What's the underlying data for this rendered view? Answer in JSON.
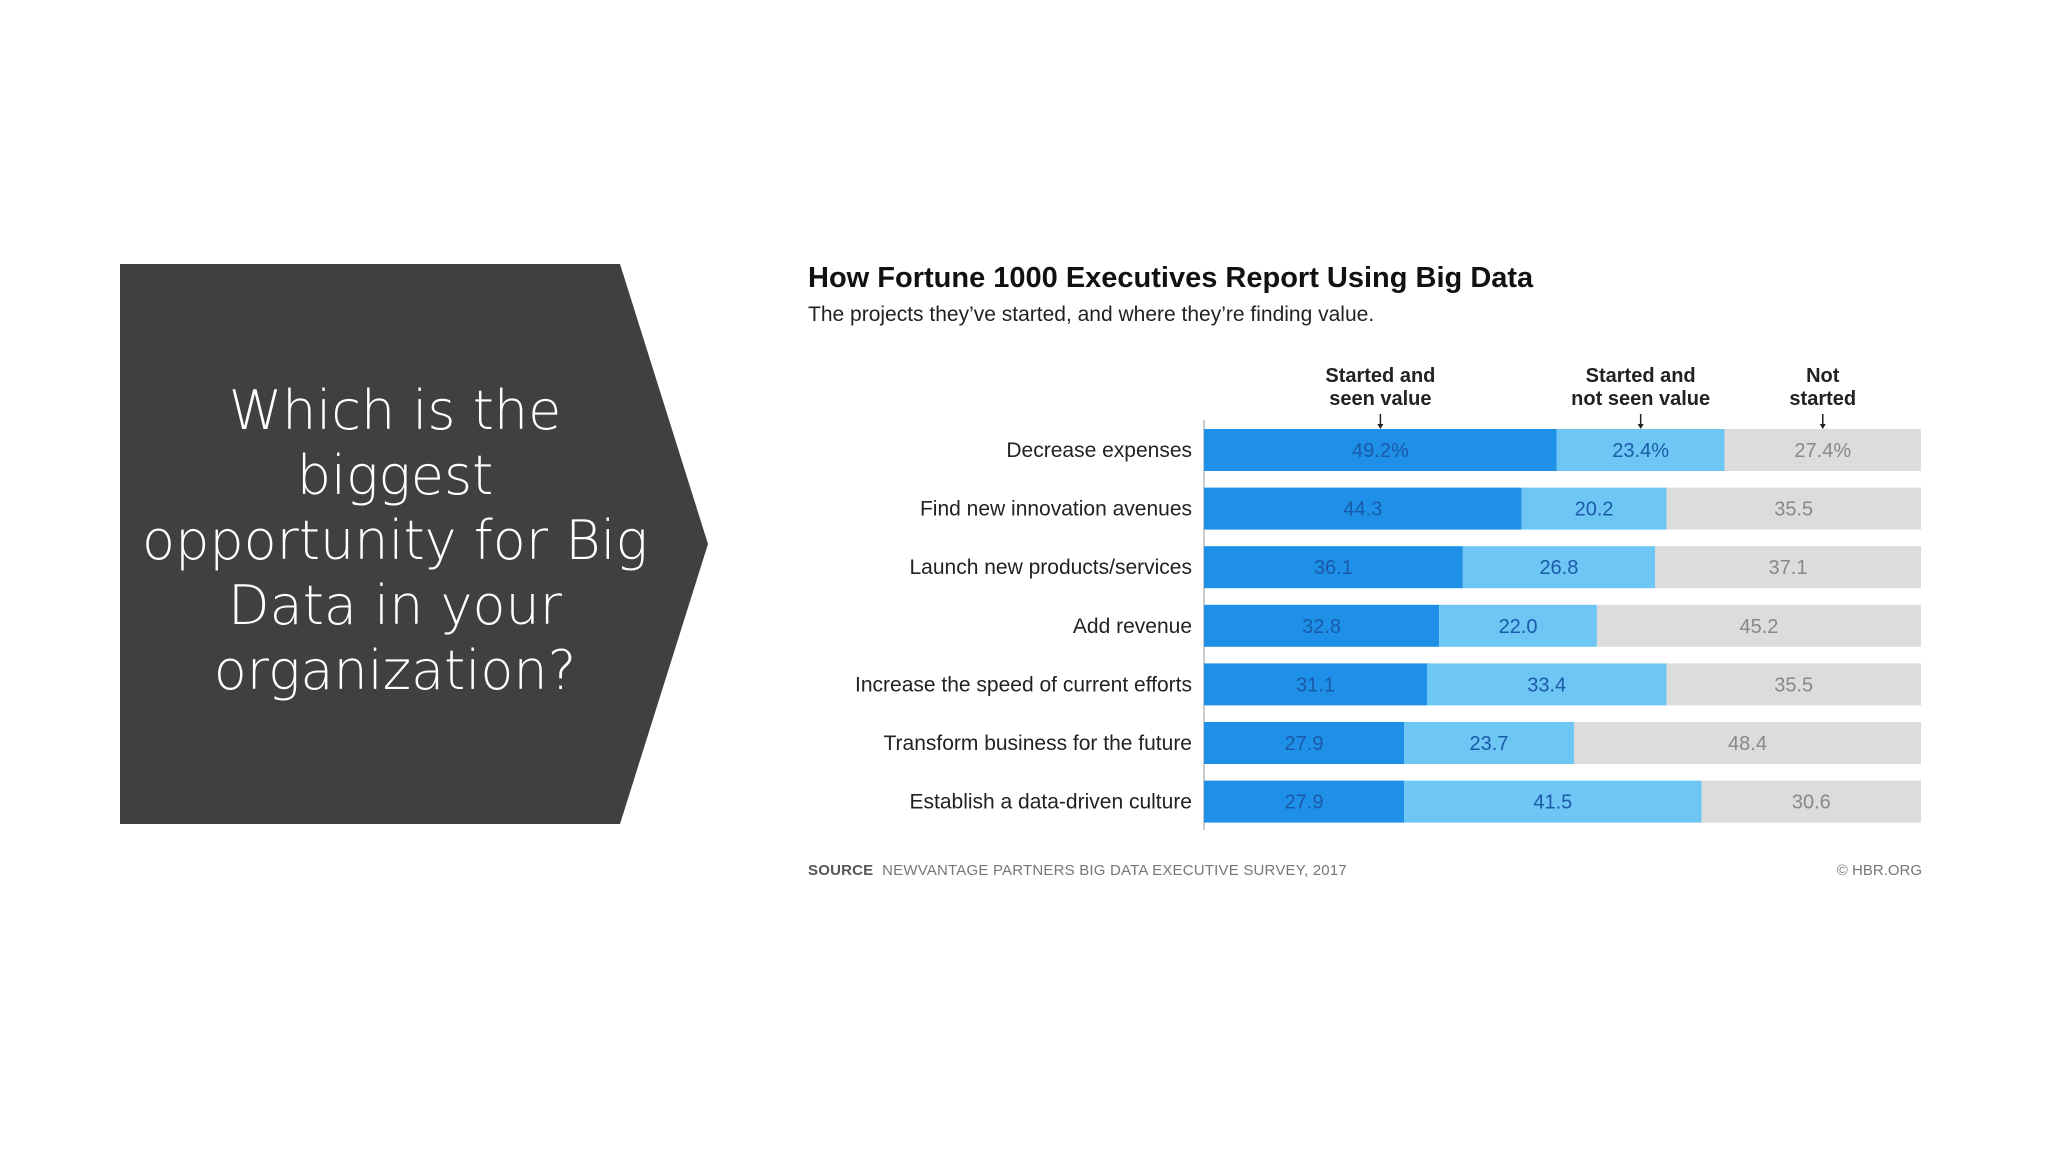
{
  "slide": {
    "question": "Which is the biggest opportunity for Big Data in your organization?",
    "panel_color": "#404040"
  },
  "chart_data": {
    "type": "bar",
    "stacked": true,
    "orientation": "horizontal",
    "title": "How Fortune 1000 Executives Report Using Big Data",
    "subtitle": "The projects they’ve started, and where they’re finding value.",
    "categories": [
      "Decrease expenses",
      "Find new innovation avenues",
      "Launch new products/services",
      "Add revenue",
      "Increase the speed of current efforts",
      "Transform business for the future",
      "Establish a data-driven culture"
    ],
    "series": [
      {
        "name": "Started and seen value",
        "color": "#1e90e8",
        "values": [
          49.2,
          44.3,
          36.1,
          32.8,
          31.1,
          27.9,
          27.9
        ],
        "labels": [
          "49.2%",
          "44.3",
          "36.1",
          "32.8",
          "31.1",
          "27.9",
          "27.9"
        ]
      },
      {
        "name": "Started and not seen value",
        "color": "#6ec6f5",
        "values": [
          23.4,
          20.2,
          26.8,
          22.0,
          33.4,
          23.7,
          41.5
        ],
        "labels": [
          "23.4%",
          "20.2",
          "26.8",
          "22.0",
          "33.4",
          "23.7",
          "41.5"
        ]
      },
      {
        "name": "Not started",
        "color": "#dcdcdc",
        "values": [
          27.4,
          35.5,
          37.1,
          45.2,
          35.5,
          48.4,
          30.6
        ],
        "labels": [
          "27.4%",
          "35.5",
          "37.1",
          "45.2",
          "35.5",
          "48.4",
          "30.6"
        ]
      }
    ],
    "legend_headers": [
      [
        "Started and",
        "seen value"
      ],
      [
        "Started and",
        "not seen value"
      ],
      [
        "Not",
        "started"
      ]
    ],
    "xlim": [
      0,
      100
    ],
    "legend_position": "top",
    "grid": false
  },
  "source": {
    "label": "SOURCE",
    "text": "NEWVANTAGE PARTNERS BIG DATA EXECUTIVE SURVEY, 2017",
    "credit": "© HBR.ORG"
  }
}
